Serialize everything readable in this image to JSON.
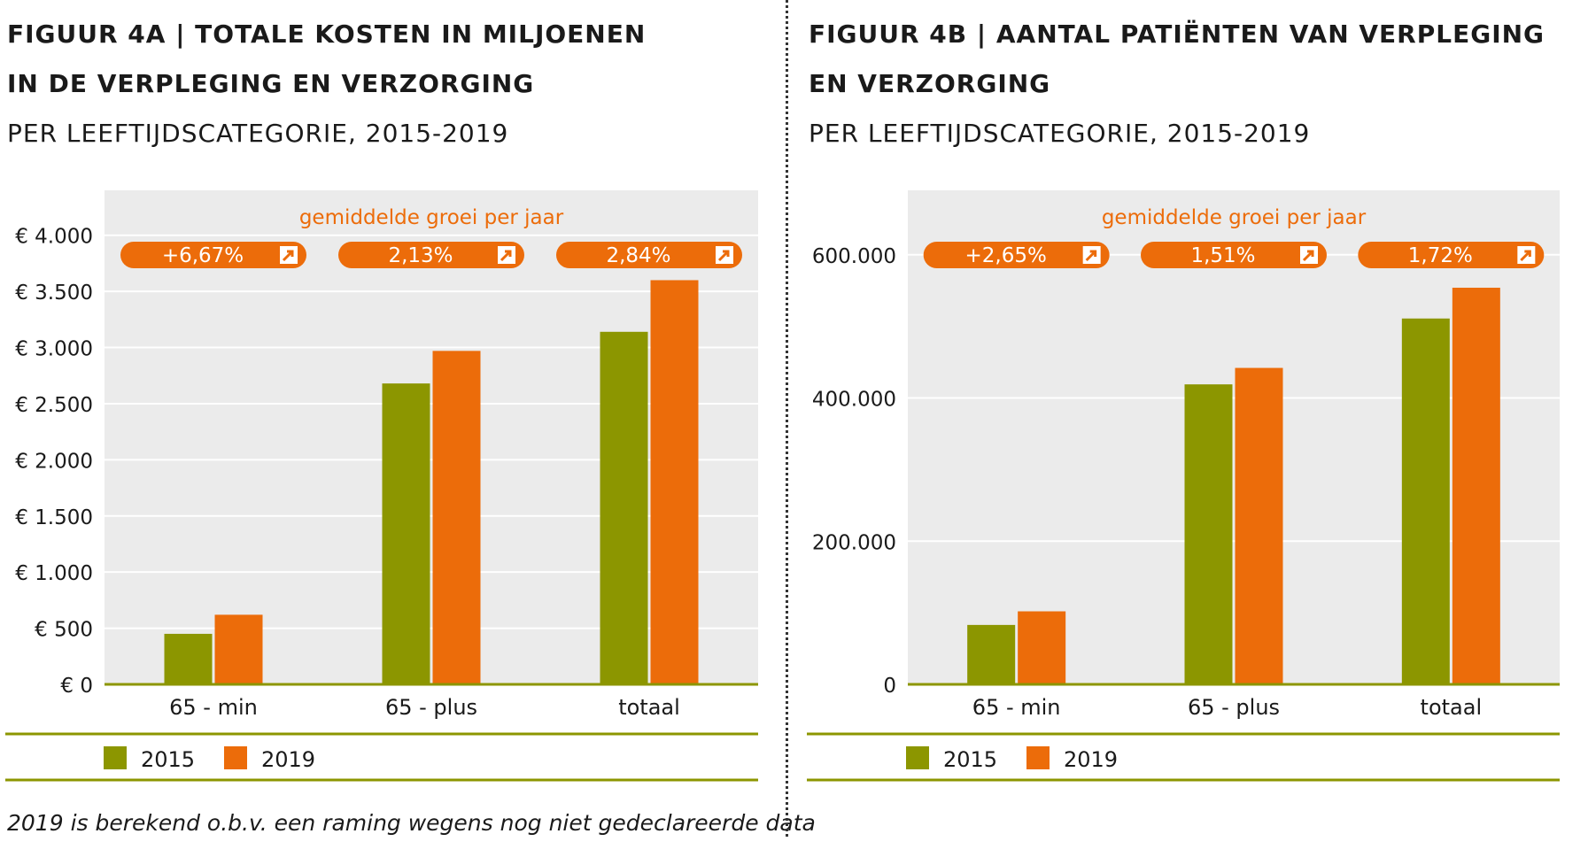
{
  "panels": [
    {
      "title_line1": "FIGUUR 4A | TOTALE KOSTEN IN MILJOENEN",
      "title_line2": "IN DE VERPLEGING EN VERZORGING",
      "subtitle": "PER LEEFTIJDSCATEGORIE, 2015-2019"
    },
    {
      "title_line1": "FIGUUR 4B | AANTAL PATIËNTEN VAN VERPLEGING",
      "title_line2": "EN VERZORGING",
      "subtitle": "PER LEEFTIJDSCATEGORIE, 2015-2019"
    }
  ],
  "growth_header": "gemiddelde groei per jaar",
  "footnote": "2019 is berekend o.b.v. een raming wegens nog niet gedeclareerde data",
  "colors": {
    "series2015": "#8c9600",
    "series2019": "#ec6c0a",
    "plot_bg": "#ebebeb",
    "accent": "#8c9600"
  },
  "chart_data": [
    {
      "type": "bar",
      "categories": [
        "65 - min",
        "65 - plus",
        "totaal"
      ],
      "series": [
        {
          "name": "2015",
          "values": [
            450,
            2680,
            3140
          ]
        },
        {
          "name": "2019",
          "values": [
            620,
            2970,
            3600
          ]
        }
      ],
      "ylim": [
        0,
        4400
      ],
      "yticks": [
        0,
        500,
        1000,
        1500,
        2000,
        2500,
        3000,
        3500,
        4000
      ],
      "ytick_labels": [
        "€ 0",
        "€ 500",
        "€ 1.000",
        "€ 1.500",
        "€ 2.000",
        "€ 2.500",
        "€ 3.000",
        "€ 3.500",
        "€ 4.000"
      ],
      "growth_labels": [
        "+6,67%",
        "2,13%",
        "2,84%"
      ],
      "legend": [
        "2015",
        "2019"
      ],
      "legend_position": "bottom-left",
      "grid": true
    },
    {
      "type": "bar",
      "categories": [
        "65 - min",
        "65 - plus",
        "totaal"
      ],
      "series": [
        {
          "name": "2015",
          "values": [
            83000,
            419000,
            511000
          ]
        },
        {
          "name": "2019",
          "values": [
            102000,
            442000,
            554000
          ]
        }
      ],
      "ylim": [
        0,
        690000
      ],
      "yticks": [
        0,
        200000,
        400000,
        600000
      ],
      "ytick_labels": [
        "0",
        "200.000",
        "400.000",
        "600.000"
      ],
      "growth_labels": [
        "+2,65%",
        "1,51%",
        "1,72%"
      ],
      "legend": [
        "2015",
        "2019"
      ],
      "legend_position": "bottom-left",
      "grid": true
    }
  ]
}
